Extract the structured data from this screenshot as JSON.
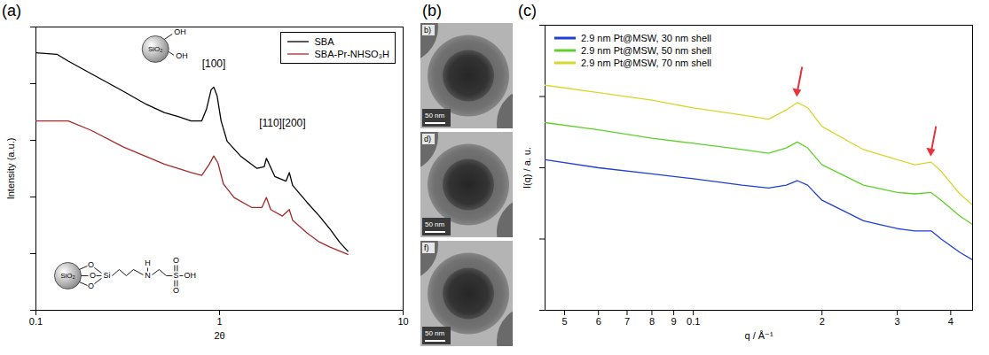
{
  "chart_data": [
    {
      "panel_label": "(a)",
      "type": "line",
      "x_label": "2θ",
      "y_label": "Intensity (a.u.)",
      "log": true,
      "grid": false,
      "tick_labels": "x",
      "legend": "top-right",
      "xlim": [
        0.1,
        10
      ],
      "xticks": [
        0.1,
        1,
        10
      ],
      "ylim": [
        0.001,
        100
      ],
      "yticks": [
        0.001,
        0.01,
        0.1,
        1,
        10,
        100
      ],
      "series": [
        {
          "name": "SBA",
          "color": "#000000",
          "x": [
            0.1,
            0.13,
            0.15,
            0.2,
            0.3,
            0.4,
            0.5,
            0.6,
            0.7,
            0.8,
            0.85,
            0.9,
            0.93,
            0.97,
            1.02,
            1.1,
            1.3,
            1.6,
            1.75,
            1.8,
            1.85,
            2.0,
            2.3,
            2.4,
            2.5,
            3.0,
            3.5,
            4.0,
            4.5,
            5.0
          ],
          "values": [
            35,
            33,
            25,
            15,
            7.3,
            4.3,
            3.1,
            2.6,
            2.2,
            2.2,
            3.6,
            7.8,
            8.7,
            6.1,
            2.2,
            0.96,
            0.53,
            0.32,
            0.34,
            0.48,
            0.4,
            0.23,
            0.19,
            0.27,
            0.16,
            0.08,
            0.046,
            0.027,
            0.016,
            0.011
          ]
        },
        {
          "name": "SBA-Pr-NHSO₃H",
          "color": "#a52a2a",
          "x": [
            0.1,
            0.15,
            0.2,
            0.3,
            0.5,
            0.7,
            0.8,
            0.88,
            0.93,
            0.98,
            1.05,
            1.2,
            1.5,
            1.7,
            1.8,
            1.9,
            2.2,
            2.4,
            2.5,
            3.0,
            3.5,
            4.0,
            5.0
          ],
          "values": [
            2.2,
            2.2,
            1.5,
            0.76,
            0.38,
            0.27,
            0.24,
            0.38,
            0.53,
            0.4,
            0.17,
            0.098,
            0.065,
            0.065,
            0.098,
            0.06,
            0.046,
            0.06,
            0.039,
            0.023,
            0.016,
            0.013,
            0.0097
          ]
        }
      ],
      "annotations": [
        {
          "text": "[100]",
          "x": 0.93,
          "y": 22
        },
        {
          "text": "[110][200]",
          "x": 2.2,
          "y": 2.0
        }
      ],
      "structures": [
        {
          "x": 0.45,
          "y": 40,
          "texts": [
            "SiO₂",
            "OH",
            "OH"
          ]
        },
        {
          "x": 0.15,
          "y": 0.004,
          "texts": [
            "SiO₂",
            "O",
            "O",
            "O",
            "Si",
            "H",
            "N",
            "S",
            "O",
            "O",
            "OH"
          ]
        }
      ]
    },
    {
      "panel_label": "(c)",
      "type": "line",
      "x_label": "q / Å⁻¹",
      "y_label": "I(q) / a. u.",
      "log": true,
      "grid": false,
      "tick_labels": "x",
      "legend": "top-left",
      "xlim": [
        0.045,
        0.45
      ],
      "xticks": [
        {
          "value": 0.05,
          "label": "5"
        },
        {
          "value": 0.06,
          "label": "6"
        },
        {
          "value": 0.07,
          "label": "7"
        },
        {
          "value": 0.08,
          "label": "8"
        },
        {
          "value": 0.09,
          "label": "9"
        },
        0.1,
        {
          "value": 0.2,
          "label": "2"
        },
        {
          "value": 0.3,
          "label": "3"
        },
        {
          "value": 0.4,
          "label": "4"
        }
      ],
      "ylim": [
        0.01,
        100
      ],
      "yticks": [
        0.01,
        0.1,
        1,
        10,
        100
      ],
      "x": [
        0.045,
        0.06,
        0.08,
        0.1,
        0.13,
        0.15,
        0.165,
        0.175,
        0.185,
        0.2,
        0.25,
        0.3,
        0.33,
        0.36,
        0.38,
        0.42,
        0.45
      ],
      "series": [
        {
          "name": "2.9 nm Pt@MSW, 30 nm shell",
          "color": "#1f3fd6",
          "values": [
            1.3,
            1.0,
            0.82,
            0.7,
            0.57,
            0.52,
            0.57,
            0.66,
            0.57,
            0.35,
            0.18,
            0.14,
            0.13,
            0.13,
            0.1,
            0.065,
            0.051
          ]
        },
        {
          "name": "2.9 nm Pt@MSW, 50 nm shell",
          "color": "#5fd22a",
          "values": [
            4.3,
            3.4,
            2.6,
            2.2,
            1.8,
            1.6,
            1.9,
            2.3,
            1.9,
            1.1,
            0.57,
            0.45,
            0.43,
            0.45,
            0.35,
            0.21,
            0.16
          ]
        },
        {
          "name": "2.9 nm Pt@MSW, 70 nm shell",
          "color": "#d8d62a",
          "values": [
            14.4,
            11.3,
            8.9,
            6.9,
            5.5,
            4.8,
            6.5,
            8.2,
            7.0,
            3.8,
            1.8,
            1.3,
            1.1,
            1.2,
            0.89,
            0.43,
            0.3
          ]
        }
      ],
      "arrows_at": [
        0.175,
        0.36
      ]
    }
  ],
  "micrographs": {
    "panel_label": "(b)",
    "images": [
      {
        "label": "b)",
        "scale_bar": "50 nm"
      },
      {
        "label": "d)",
        "scale_bar": "50 nm"
      },
      {
        "label": "f)",
        "scale_bar": "50 nm"
      }
    ]
  }
}
